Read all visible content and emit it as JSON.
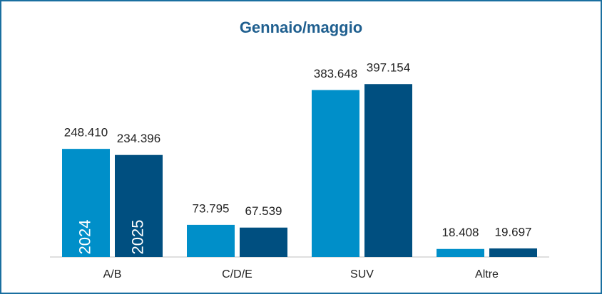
{
  "chart_data": {
    "type": "bar",
    "title": "Gennaio/maggio",
    "categories": [
      "A/B",
      "C/D/E",
      "SUV",
      "Altre"
    ],
    "series": [
      {
        "name": "2024",
        "color": "#008fc9",
        "values": [
          248410,
          73795,
          383648,
          18408
        ],
        "value_labels": [
          "248.410",
          "73.795",
          "383.648",
          "18.408"
        ]
      },
      {
        "name": "2025",
        "color": "#004f80",
        "values": [
          234396,
          67539,
          397154,
          19697
        ],
        "value_labels": [
          "234.396",
          "67.539",
          "397.154",
          "19.697"
        ]
      }
    ],
    "ylim": [
      0,
      440000
    ]
  }
}
